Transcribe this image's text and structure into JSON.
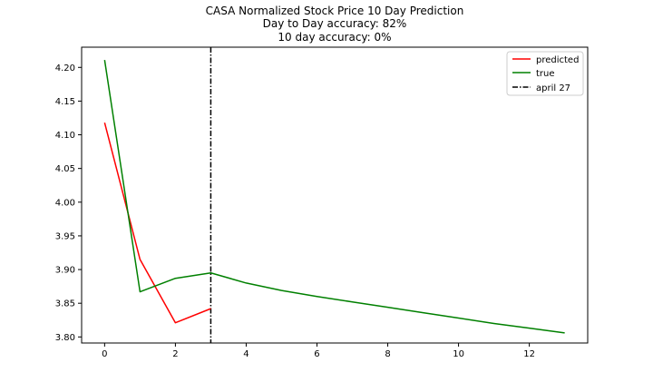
{
  "chart_data": {
    "type": "line",
    "title": "CASA Normalized Stock Price 10 Day Prediction",
    "subtitle_lines": [
      "Day to Day accuracy: 82%",
      "10 day accuracy: 0%"
    ],
    "xlabel": "",
    "ylabel": "",
    "xlim": [
      -0.65,
      13.65
    ],
    "ylim": [
      3.791,
      4.23
    ],
    "x_ticks": [
      0,
      2,
      4,
      6,
      8,
      10,
      12
    ],
    "y_ticks": [
      3.8,
      3.85,
      3.9,
      3.95,
      4.0,
      4.05,
      4.1,
      4.15,
      4.2
    ],
    "grid": false,
    "legend_position": "top-right",
    "series": [
      {
        "name": "predicted",
        "color": "#ff0000",
        "x": [
          0,
          1,
          2,
          3
        ],
        "y": [
          4.118,
          3.915,
          3.821,
          3.842
        ]
      },
      {
        "name": "true",
        "color": "#008000",
        "x": [
          0,
          1,
          2,
          3,
          4,
          5,
          6,
          7,
          8,
          9,
          10,
          11,
          12,
          13
        ],
        "y": [
          4.211,
          3.867,
          3.887,
          3.895,
          3.88,
          3.869,
          3.86,
          3.852,
          3.844,
          3.836,
          3.828,
          3.82,
          3.813,
          3.806
        ]
      }
    ],
    "vlines": [
      {
        "name": "april 27",
        "x": 3,
        "color": "#000000",
        "style": "dashdot"
      }
    ]
  }
}
